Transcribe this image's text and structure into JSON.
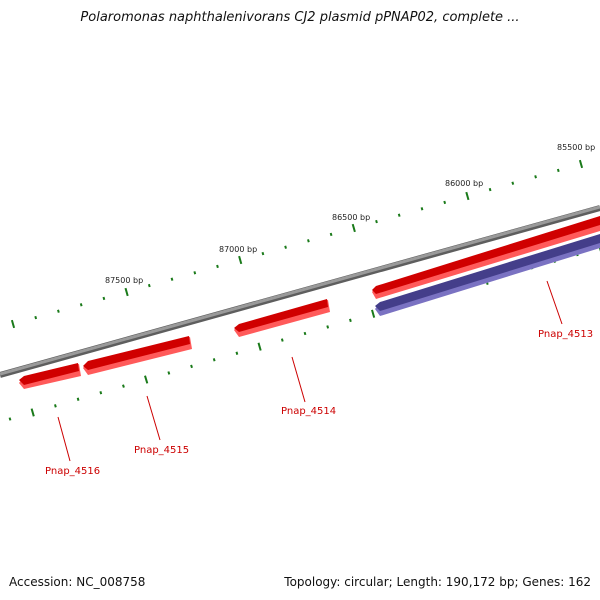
{
  "title": "Polaromonas naphthalenivorans CJ2 plasmid pPNAP02, complete ...",
  "footer": {
    "accession": "Accession: NC_008758",
    "summary": "Topology: circular; Length: 190,172 bp; Genes: 162"
  },
  "colors": {
    "backbone": "#7a7a7a",
    "tick": "#1a7a1a",
    "forward_gene": "#ee1111",
    "reverse_gene": "#443e8a",
    "gene_label": "#cc0000"
  },
  "scale_labels": [
    "85500 bp",
    "86000 bp",
    "86500 bp",
    "87000 bp",
    "87500 bp"
  ],
  "genes": [
    {
      "name": "Pnap_4513",
      "strand": "reverse"
    },
    {
      "name": "Pnap_4514",
      "strand": "forward"
    },
    {
      "name": "Pnap_4515",
      "strand": "forward"
    },
    {
      "name": "Pnap_4516",
      "strand": "forward"
    }
  ]
}
